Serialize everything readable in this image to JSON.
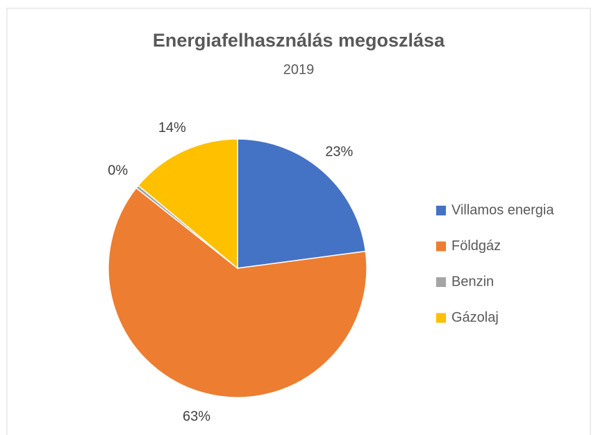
{
  "chart_data": {
    "type": "pie",
    "title": "Energiafelhasználás megoszlása",
    "subtitle": "2019",
    "categories": [
      "Villamos energia",
      "Földgáz",
      "Benzin",
      "Gázolaj"
    ],
    "values": [
      23,
      63,
      0.4,
      14
    ],
    "value_labels": [
      "23%",
      "63%",
      "0%",
      "14%"
    ],
    "colors": [
      "#4472c4",
      "#ed7d31",
      "#a5a5a5",
      "#ffc000"
    ],
    "legend": "right"
  }
}
